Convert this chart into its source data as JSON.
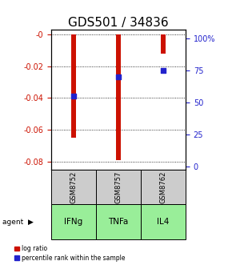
{
  "title": "GDS501 / 34836",
  "samples": [
    "GSM8752",
    "GSM8757",
    "GSM8762"
  ],
  "agents": [
    "IFNg",
    "TNFa",
    "IL4"
  ],
  "log_ratios": [
    -0.065,
    -0.079,
    -0.012
  ],
  "percentile_ranks": [
    55,
    70,
    75
  ],
  "ylim_left": [
    -0.085,
    0.003
  ],
  "ylim_right": [
    -2,
    107
  ],
  "bar_color": "#cc1100",
  "dot_color": "#2222cc",
  "agent_bg_color": "#99ee99",
  "sample_bg_color": "#cccccc",
  "legend_log_label": "log ratio",
  "legend_pct_label": "percentile rank within the sample",
  "title_fontsize": 11,
  "tick_fontsize": 7,
  "left_tick_color": "#cc1100",
  "right_tick_color": "#2222cc",
  "bar_width": 0.1,
  "dot_size": 18
}
